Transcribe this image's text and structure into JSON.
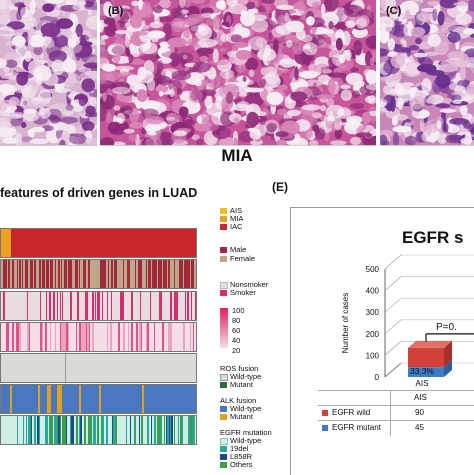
{
  "panels": {
    "b": "(B)",
    "c": "(C)",
    "e": "(E)"
  },
  "histology_caption": "MIA",
  "heatmap_title": "features of driven genes in LUAD",
  "legend": {
    "stage": [
      "AIS",
      "MIA",
      "IAC"
    ],
    "sex": [
      "Male",
      "Female"
    ],
    "smoking": [
      "Nonsmoker",
      "Smoker"
    ],
    "scale": [
      "100",
      "80",
      "60",
      "40",
      "20"
    ],
    "ros_title": "ROS fusion",
    "ros": [
      "Wild-type",
      "Mutant"
    ],
    "alk_title": "ALK fusion",
    "alk": [
      "Wild-type",
      "Mutant"
    ],
    "egfr_title": "EGFR mutation",
    "egfr": [
      "Wild-type",
      "19del",
      "L858R",
      "Others"
    ]
  },
  "colors": {
    "ais": "#e8c31f",
    "mia": "#f0a020",
    "iac": "#c8262b",
    "male": "#a02a3a",
    "female": "#bfa58a",
    "nonsmoker": "#e9dde2",
    "smoker": "#d82e6e",
    "wild": "#d8dcd4",
    "mutant": "#2e6b3a",
    "alk_wild": "#4a78c0",
    "alk_mut": "#e0a020",
    "egfr_wild": "#cfeee6",
    "egfr_19del": "#2aa8a0",
    "egfr_l858r": "#1e4d8c",
    "egfr_others": "#3aa050",
    "bar_wild": "#d2403a",
    "bar_mutant": "#3a7cc8"
  },
  "chart_data": {
    "type": "bar",
    "title": "EGFR s",
    "ylabel": "Number of cases",
    "ylim": [
      0,
      500
    ],
    "yticks": [
      0,
      100,
      200,
      300,
      400,
      500
    ],
    "categories": [
      "AIS"
    ],
    "series": [
      {
        "name": "EGFR wild",
        "values": [
          90
        ]
      },
      {
        "name": "EGFR mutant",
        "values": [
          45
        ]
      }
    ],
    "data_labels": [
      "33.3%"
    ],
    "p_label": "P=0."
  },
  "table": {
    "header": [
      "",
      "AIS"
    ],
    "rows": [
      {
        "label": "EGFR wild",
        "value": "90"
      },
      {
        "label": "EGFR mutant",
        "value": "45"
      }
    ]
  }
}
